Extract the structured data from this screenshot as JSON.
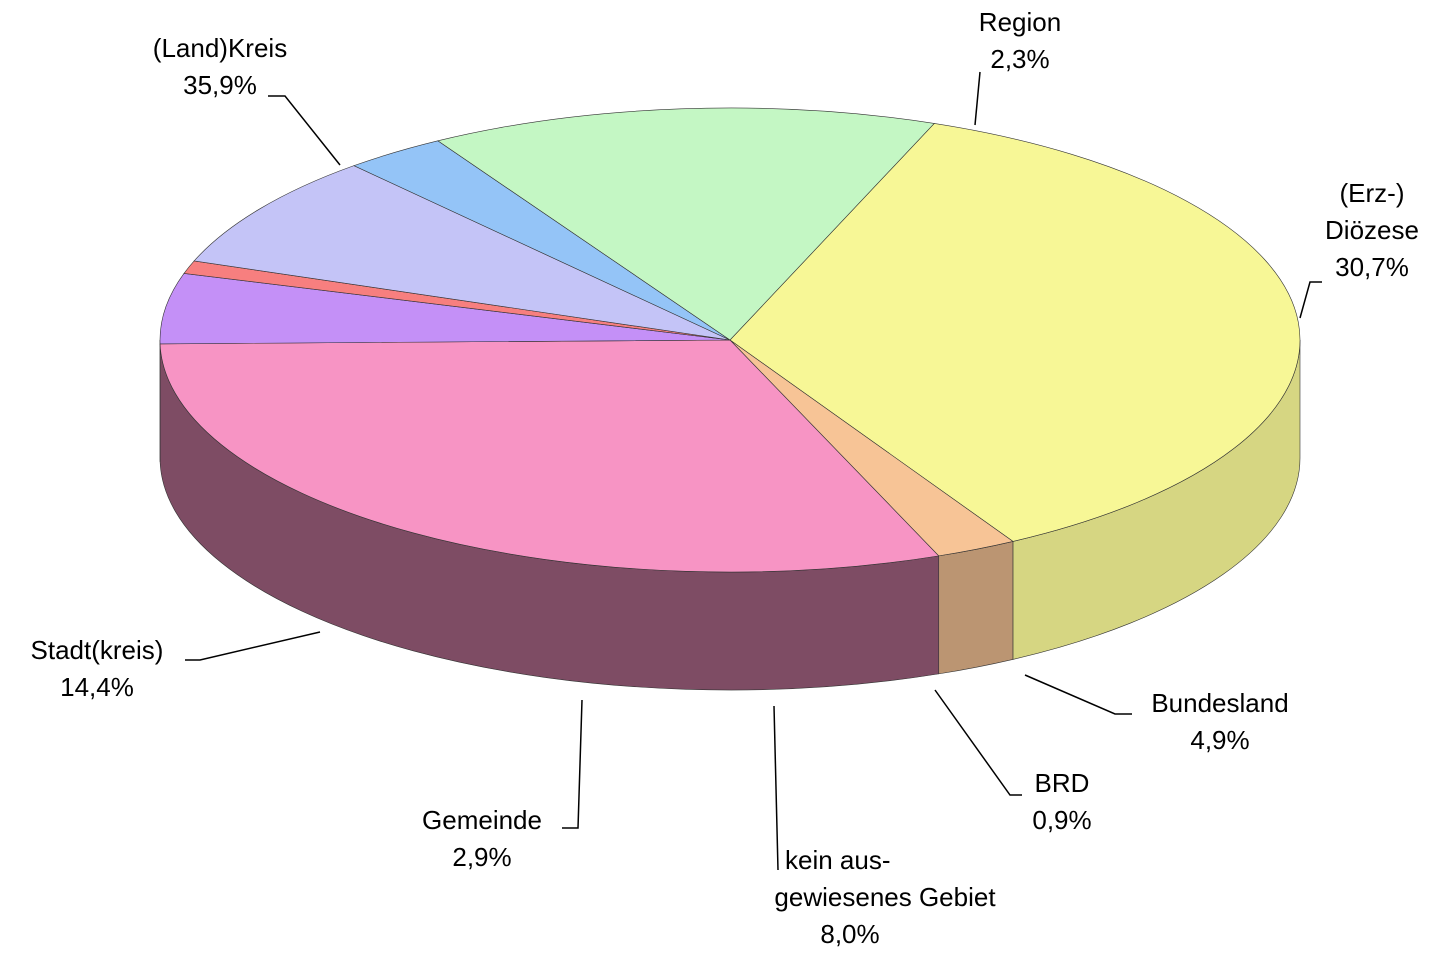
{
  "chart_data": {
    "type": "pie3d",
    "categories": [
      "(Land)Kreis",
      "Region",
      "(Erz-)\nDiözese",
      "Bundesland",
      "BRD",
      "kein aus-\ngewiesenes Gebiet",
      "Gemeinde",
      "Stadt(kreis)"
    ],
    "values": [
      35.9,
      2.3,
      30.7,
      4.9,
      0.9,
      8.0,
      2.9,
      14.4
    ],
    "value_labels": [
      "35,9%",
      "2,3%",
      "30,7%",
      "4,9%",
      "0,9%",
      "8,0%",
      "2,9%",
      "14,4%"
    ],
    "colors": [
      "#f7f796",
      "#f7c496",
      "#f794c4",
      "#c490f7",
      "#f77f7f",
      "#c4c4f7",
      "#94c4f7",
      "#c4f7c4"
    ]
  }
}
